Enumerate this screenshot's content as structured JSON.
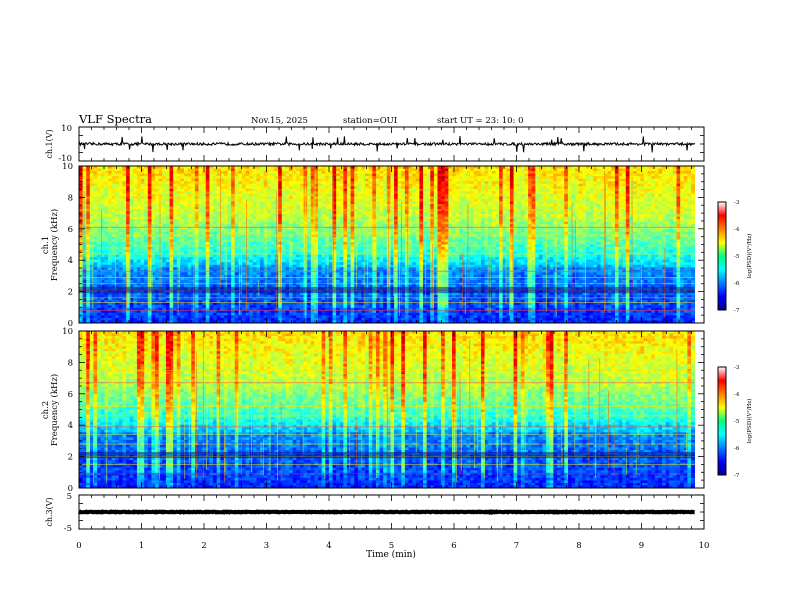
{
  "header": {
    "title": "VLF Spectra",
    "date": "Nov.15, 2025",
    "station": "station=OUI",
    "start": "start  UT =   23: 10: 0"
  },
  "chart_data": [
    {
      "type": "line",
      "panel": "ch1-waveform",
      "ylabel": "ch.1(V)",
      "ylim": [
        -10,
        10
      ],
      "yticks": [
        "10",
        "-10"
      ],
      "x_range_min": [
        0,
        9.85
      ],
      "baseline_v": 0,
      "noise_amplitude_v": 1.5,
      "spike_amplitude_v": 5
    },
    {
      "type": "heatmap",
      "panel": "ch1-spectrogram",
      "ylabel_line1": "ch.1",
      "ylabel_line2": "Frequency (kHz)",
      "ylim": [
        0,
        10
      ],
      "yticks": [
        "0",
        "2",
        "4",
        "6",
        "8",
        "10"
      ],
      "x_range_min": [
        0,
        9.85
      ],
      "log_psd_range": [
        -7,
        -3
      ],
      "bands_khz": [
        0.8,
        1.3,
        1.6,
        2.1,
        2.5,
        2.9,
        3.3,
        4.4,
        5.6,
        6.1,
        7.2
      ],
      "colorbar": {
        "label": "log(PSD)(V²/Hz)",
        "ticks": [
          "-3",
          "-4",
          "-5",
          "-6",
          "-7"
        ]
      }
    },
    {
      "type": "heatmap",
      "panel": "ch2-spectrogram",
      "ylabel_line1": "ch.2",
      "ylabel_line2": "Frequency (kHz)",
      "ylim": [
        0,
        10
      ],
      "yticks": [
        "0",
        "2",
        "4",
        "6",
        "8",
        "10"
      ],
      "x_range_min": [
        0,
        9.85
      ],
      "log_psd_range": [
        -7,
        -3
      ],
      "bands_khz": [
        0.9,
        1.5,
        2.0,
        2.2,
        2.8,
        3.4,
        3.9,
        4.6,
        5.2,
        6.7,
        7.5
      ],
      "colorbar": {
        "label": "log(PSD)(V²/Hz)",
        "ticks": [
          "-3",
          "-4",
          "-5",
          "-6",
          "-7"
        ]
      }
    },
    {
      "type": "line",
      "panel": "ch3-waveform",
      "ylabel": "ch.3(V)",
      "ylim": [
        -5,
        5
      ],
      "yticks": [
        "5",
        "-5"
      ],
      "x_range_min": [
        0,
        9.85
      ],
      "baseline_v": 0,
      "noise_amplitude_v": 0.2,
      "xlabel": "Time (min)",
      "xticks": [
        "0",
        "1",
        "2",
        "3",
        "4",
        "5",
        "6",
        "7",
        "8",
        "9",
        "10"
      ],
      "xlim": [
        0,
        10
      ]
    }
  ]
}
